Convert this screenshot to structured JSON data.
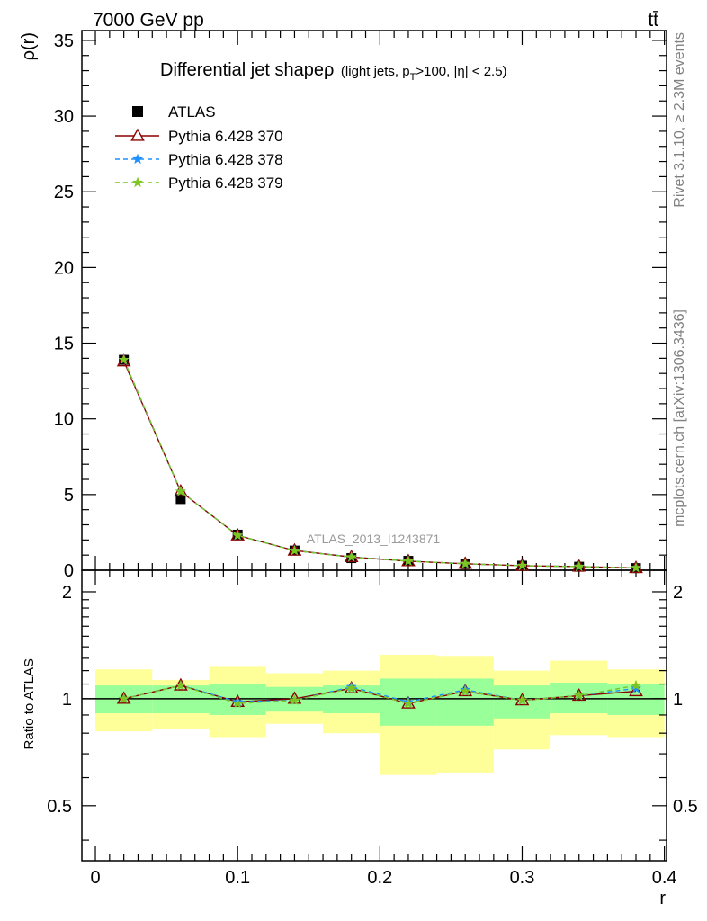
{
  "header": {
    "left": "7000 GeV pp",
    "right": "tt̄"
  },
  "side_text": {
    "rivet": "Rivet 3.1.10, ≥ 2.3M events",
    "mcplots": "mcplots.cern.ch [arXiv:1306.3436]"
  },
  "colors": {
    "atlas": "#000000",
    "s370": "#8b0000",
    "s378": "#1e90ff",
    "s379": "#7cc621",
    "band_inner": "#99ff99",
    "band_outer": "#ffff99"
  },
  "chart_data": [
    {
      "type": "line",
      "title_main": "Differential jet shapeρ",
      "title_cond_pre": "(light jets, p",
      "title_cond_sub": "T",
      "title_cond_post": ">100, |η| < 2.5)",
      "ylabel": "ρ(r)",
      "xlabel": "r",
      "watermark": "ATLAS_2013_I1243871",
      "xlim": [
        -0.01,
        0.4
      ],
      "ylim": [
        0,
        35
      ],
      "yticks": [
        0,
        5,
        10,
        15,
        20,
        25,
        30,
        35
      ],
      "x": [
        0.02,
        0.06,
        0.1,
        0.14,
        0.18,
        0.22,
        0.26,
        0.3,
        0.34,
        0.38
      ],
      "series": [
        {
          "name": "ATLAS",
          "style": "data",
          "values": [
            13.9,
            4.7,
            2.35,
            1.3,
            0.8,
            0.62,
            0.4,
            0.3,
            0.23,
            0.14
          ]
        },
        {
          "name": "Pythia 6.428 370",
          "style": "triangle",
          "values": [
            13.8,
            5.2,
            2.3,
            1.3,
            0.87,
            0.6,
            0.43,
            0.3,
            0.24,
            0.15
          ]
        },
        {
          "name": "Pythia 6.428 378",
          "style": "star",
          "values": [
            13.9,
            5.2,
            2.3,
            1.3,
            0.87,
            0.61,
            0.43,
            0.3,
            0.24,
            0.16
          ]
        },
        {
          "name": "Pythia 6.428 379",
          "style": "star",
          "values": [
            13.9,
            5.2,
            2.3,
            1.29,
            0.87,
            0.6,
            0.43,
            0.3,
            0.24,
            0.16
          ]
        }
      ],
      "legend": "top-left"
    },
    {
      "type": "line",
      "ylabel": "Ratio to ATLAS",
      "xlabel": "r",
      "xlim": [
        -0.01,
        0.4
      ],
      "ylim": [
        0.35,
        2.3
      ],
      "yticks": [
        "0.5",
        "1",
        "2"
      ],
      "xticks": [
        "0",
        "0.1",
        "0.2",
        "0.3",
        "0.4"
      ],
      "x": [
        0.02,
        0.06,
        0.1,
        0.14,
        0.18,
        0.22,
        0.26,
        0.3,
        0.34,
        0.38
      ],
      "bin_edges": [
        0.0,
        0.04,
        0.08,
        0.12,
        0.16,
        0.2,
        0.24,
        0.28,
        0.32,
        0.36,
        0.4
      ],
      "band_inner": {
        "low": [
          0.91,
          0.91,
          0.9,
          0.92,
          0.91,
          0.84,
          0.84,
          0.88,
          0.91,
          0.9
        ],
        "high": [
          1.09,
          1.09,
          1.1,
          1.08,
          1.09,
          1.14,
          1.14,
          1.09,
          1.11,
          1.1
        ]
      },
      "band_outer": {
        "low": [
          0.81,
          0.82,
          0.78,
          0.85,
          0.8,
          0.61,
          0.62,
          0.72,
          0.79,
          0.78
        ],
        "high": [
          1.21,
          1.13,
          1.23,
          1.18,
          1.2,
          1.33,
          1.32,
          1.2,
          1.28,
          1.21
        ]
      },
      "reference": 1,
      "series": [
        {
          "name": "Pythia 6.428 370",
          "values": [
            1.0,
            1.09,
            0.98,
            1.0,
            1.07,
            0.97,
            1.05,
            0.99,
            1.02,
            1.05
          ]
        },
        {
          "name": "Pythia 6.428 378",
          "values": [
            1.0,
            1.09,
            0.98,
            0.99,
            1.08,
            0.98,
            1.06,
            0.99,
            1.02,
            1.07
          ]
        },
        {
          "name": "Pythia 6.428 379",
          "values": [
            1.0,
            1.09,
            0.97,
            0.99,
            1.07,
            0.97,
            1.05,
            0.99,
            1.02,
            1.09
          ]
        }
      ]
    }
  ]
}
